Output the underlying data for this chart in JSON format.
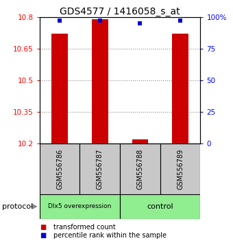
{
  "title": "GDS4577 / 1416058_s_at",
  "samples": [
    "GSM556786",
    "GSM556787",
    "GSM556788",
    "GSM556789"
  ],
  "red_bar_values": [
    10.72,
    10.79,
    10.22,
    10.72
  ],
  "blue_marker_values": [
    97,
    97,
    95,
    97
  ],
  "ylim_left": [
    10.2,
    10.8
  ],
  "ylim_right": [
    0,
    100
  ],
  "yticks_left": [
    10.2,
    10.35,
    10.5,
    10.65,
    10.8
  ],
  "yticks_right": [
    0,
    25,
    50,
    75,
    100
  ],
  "ytick_labels_right": [
    "0",
    "25",
    "50",
    "75",
    "100%"
  ],
  "groups": [
    {
      "label": "Dlx5 overexpression",
      "samples": [
        0,
        1
      ],
      "color": "#90EE90"
    },
    {
      "label": "control",
      "samples": [
        2,
        3
      ],
      "color": "#90EE90"
    }
  ],
  "protocol_label": "protocol",
  "bar_color": "#CC0000",
  "marker_color": "#0000CC",
  "bar_base": 10.2,
  "marker_size": 5,
  "grid_color": "#888888",
  "background_color": "#ffffff",
  "legend_red_label": "transformed count",
  "legend_blue_label": "percentile rank within the sample",
  "sample_box_color": "#C8C8C8",
  "title_fontsize": 10,
  "tick_fontsize": 7.5,
  "label_fontsize": 7
}
